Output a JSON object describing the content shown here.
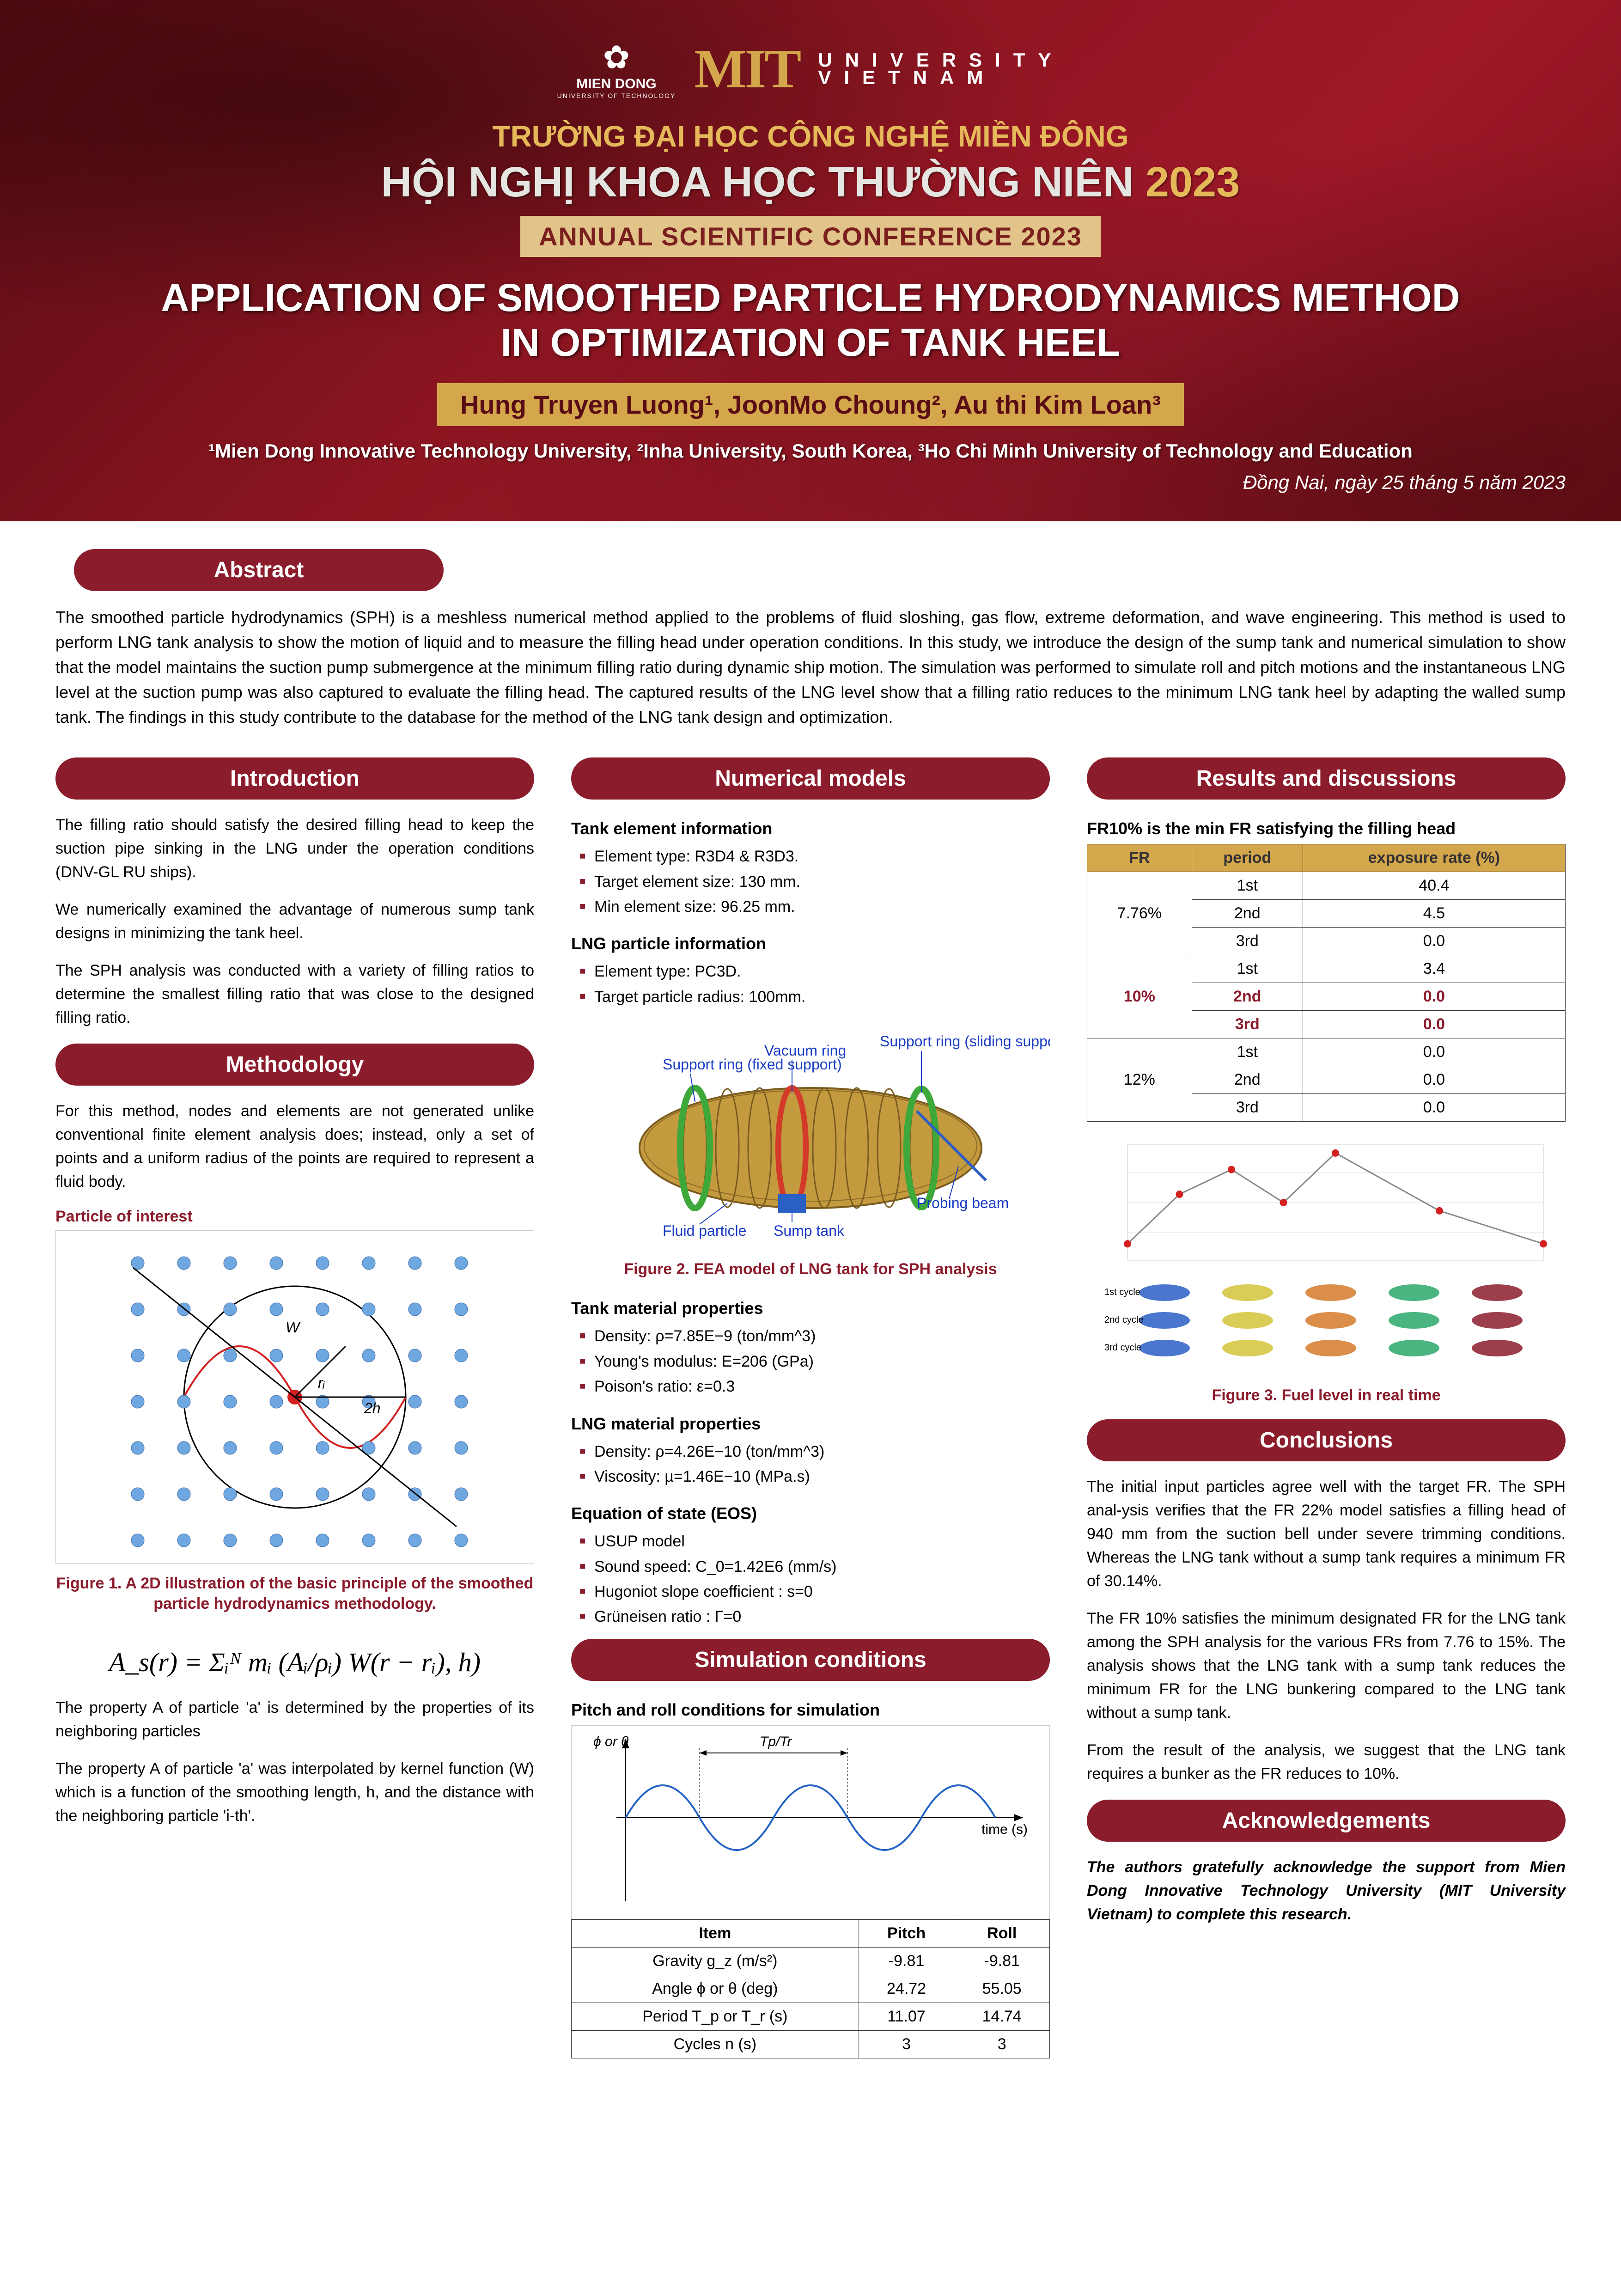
{
  "colors": {
    "brand_red": "#8b1c2c",
    "header_dark": "#5a0c14",
    "gold": "#d4a74c",
    "badge_gold": "#e2c48a",
    "text": "#222222",
    "white": "#ffffff",
    "grid": "#e0e0e0"
  },
  "header": {
    "mit": "MIT",
    "university": "UNIVERSITY",
    "vietnam": "VIETNAM",
    "miendong_name": "MIEN DONG",
    "miendong_sub": "UNIVERSITY OF TECHNOLOGY",
    "viet_line": "TRƯỜNG ĐẠI HỌC CÔNG NGHỆ MIỀN ĐÔNG",
    "hoi_line_a": "HỘI NGHỊ KHOA HỌC THƯỜNG NIÊN",
    "hoi_year": "2023",
    "annual_badge": "ANNUAL SCIENTIFIC CONFERENCE 2023",
    "title_l1": "APPLICATION OF SMOOTHED PARTICLE HYDRODYNAMICS  METHOD",
    "title_l2": "IN OPTIMIZATION OF TANK HEEL",
    "authors_html": "Hung Truyen Luong¹, JoonMo Choung², Au thi Kim Loan³",
    "affiliations": "¹Mien Dong Innovative Technology University, ²Inha University, South Korea, ³Ho Chi Minh University of Technology and Education",
    "date": "Đồng Nai, ngày 25 tháng 5 năm 2023"
  },
  "sections": {
    "abstract": "Abstract",
    "introduction": "Introduction",
    "methodology": "Methodology",
    "numerical": "Numerical models",
    "simulation": "Simulation conditions",
    "results": "Results and discussions",
    "conclusions": "Conclusions",
    "ack": "Acknowledgements"
  },
  "abstract_text": "The smoothed particle hydrodynamics (SPH) is a meshless numerical method applied to the problems of fluid sloshing, gas flow, extreme deformation, and wave engineering. This method is used to perform LNG tank analysis to show the motion of liquid and to measure the filling head under operation conditions.  In this study, we introduce the design of the sump tank and numerical simulation to show that the model maintains the suction pump submergence at the minimum filling ratio during dynamic ship motion. The simulation was performed to simulate roll and pitch motions and the instantaneous LNG level at the suction pump was also captured to evaluate the filling head. The captured results of the LNG level show that a filling ratio reduces to the minimum LNG tank heel by adapting the walled sump tank. The findings in this study contribute to the database for the method of the LNG tank design and optimization.",
  "intro": {
    "p1": "The filling ratio should satisfy the desired filling head to keep the suction pipe sinking in the LNG under the operation conditions (DNV-GL RU ships).",
    "p2": "We numerically examined the advantage of numerous sump tank designs in minimizing the tank heel.",
    "p3": "The SPH analysis was conducted with a variety of filling ratios to determine the smallest filling ratio that was close to the designed filling ratio."
  },
  "methodology": {
    "p1": "For this method, nodes and elements are not generated unlike conventional finite element analysis does; instead, only a set of points and a uniform radius of the points are required to represent a fluid body.",
    "particle_label": "Particle of interest",
    "fig1_caption": "Figure 1. A 2D illustration of the basic principle of  the smoothed particle hydrodynamics methodology.",
    "formula": "A_s(r) = Σᵢᴺ mᵢ (Aᵢ/ρᵢ) W(r − rᵢ), h)",
    "p2": "The property A of particle 'a' is determined by the properties of its neighboring particles",
    "p3": "The property A of particle 'a' was interpolated by kernel function (W) which is a function of the smoothing length, h, and the distance with the neighboring particle 'i-th'."
  },
  "numerical": {
    "tank_info_head": "Tank element information",
    "tank_info": [
      "Element type: R3D4 & R3D3.",
      "Target element size: 130 mm.",
      "Min element size: 96.25 mm."
    ],
    "lng_info_head": "LNG particle information",
    "lng_info": [
      "Element type: PC3D.",
      "Target particle radius: 100mm."
    ],
    "fig2_caption": "Figure 2. FEA model of LNG tank for SPH analysis",
    "fig2_labels": {
      "support_fixed": "Support ring (fixed support)",
      "vacuum": "Vacuum ring",
      "support_slide": "Support ring (sliding support)",
      "probing": "Probing beam",
      "sump": "Sump tank",
      "fluid": "Fluid particle"
    },
    "tank_mat_head": "Tank material properties",
    "tank_mat": [
      "Density: ρ=7.85E−9 (ton/mm^3)",
      "Young's modulus: E=206 (GPa)",
      "Poison's ratio: ε=0.3"
    ],
    "lng_mat_head": "LNG material properties",
    "lng_mat": [
      "Density: ρ=4.26E−10 (ton/mm^3)",
      "Viscosity: µ=1.46E−10 (MPa.s)"
    ],
    "eos_head": "Equation of state (EOS)",
    "eos": [
      "USUP model",
      "Sound speed: C_0=1.42E6 (mm/s)",
      "Hugoniot slope coefficient : s=0",
      "Grüneisen ratio : Γ=0"
    ]
  },
  "simulation": {
    "pitch_head": "Pitch and roll conditions for simulation",
    "axis_y": "ϕ or θ",
    "axis_x": "time (s)",
    "period_label": "Tp/Tr",
    "table_headers": [
      "Item",
      "Pitch",
      "Roll"
    ],
    "table_rows": [
      [
        "Gravity g_z (m/s²)",
        "-9.81",
        "-9.81"
      ],
      [
        "Angle ϕ or θ (deg)",
        "24.72",
        "55.05"
      ],
      [
        "Period T_p or T_r (s)",
        "11.07",
        "14.74"
      ],
      [
        "Cycles n (s)",
        "3",
        "3"
      ]
    ]
  },
  "results": {
    "head": "FR10% is the min FR satisfying the filling head",
    "table_headers": [
      "FR",
      "period",
      "exposure rate (%)"
    ],
    "rows": [
      {
        "fr": "7.76%",
        "period": "1st",
        "rate": "40.4",
        "hl": false
      },
      {
        "fr": "",
        "period": "2nd",
        "rate": "4.5",
        "hl": false
      },
      {
        "fr": "",
        "period": "3rd",
        "rate": "0.0",
        "hl": false
      },
      {
        "fr": "10%",
        "period": "1st",
        "rate": "3.4",
        "hl": false,
        "fr_hl": true
      },
      {
        "fr": "",
        "period": "2nd",
        "rate": "0.0",
        "hl": true
      },
      {
        "fr": "",
        "period": "3rd",
        "rate": "0.0",
        "hl": true
      },
      {
        "fr": "12%",
        "period": "1st",
        "rate": "0.0",
        "hl": false
      },
      {
        "fr": "",
        "period": "2nd",
        "rate": "0.0",
        "hl": false
      },
      {
        "fr": "",
        "period": "3rd",
        "rate": "0.0",
        "hl": false
      }
    ],
    "fig3_caption": "Figure 3. Fuel level in real time"
  },
  "conclusions": {
    "p1": "The initial input particles agree well with the target FR. The SPH anal-ysis verifies that the FR 22% model satisfies a filling head of 940 mm from the suction bell under severe trimming conditions. Whereas the LNG tank without a sump tank requires a minimum FR of 30.14%.",
    "p2": "The FR 10% satisfies the minimum designated FR for the LNG tank among the SPH analysis for the various FRs from 7.76 to 15%. The analysis shows that the LNG tank with a sump tank reduces the minimum FR for the LNG bunkering compared to the LNG tank without a sump tank.",
    "p3": "From the result of the analysis, we suggest that the LNG tank requires a bunker as the FR reduces to 10%."
  },
  "ack_text": "The authors gratefully acknowledge the support from Mien Dong Innovative Technology University (MIT University Vietnam) to complete this research.",
  "particle_diagram": {
    "grid_cols": 8,
    "grid_rows": 7,
    "particle_color": "#6fa8e0",
    "center_color": "#d42020",
    "circle_color": "#000000",
    "r_label": "rᵢ",
    "h_label": "2h",
    "w_label": "W"
  },
  "realtime_chart": {
    "x": [
      0,
      5,
      10,
      15,
      20,
      30,
      40
    ],
    "y": [
      -1200,
      -600,
      -300,
      -700,
      -100,
      -800,
      -1200
    ],
    "point_color": "#d42020",
    "line_color": "#888888",
    "grid_color": "#e0e0e0",
    "xlim": [
      0,
      40
    ],
    "ylim": [
      -1400,
      0
    ]
  },
  "tank_colors": {
    "body": "#c49a3e",
    "ring_green": "#3fa83a",
    "ring_red": "#d43a2a",
    "sump_blue": "#2a5fc4",
    "label_color": "#1a3cc4"
  }
}
